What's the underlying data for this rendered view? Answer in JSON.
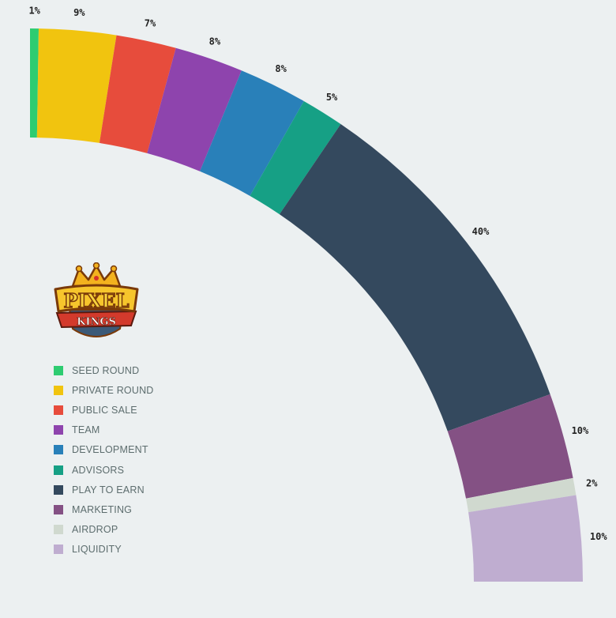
{
  "chart_data": {
    "type": "pie",
    "subtype": "quarter-donut",
    "slices": [
      {
        "label": "SEED ROUND",
        "value": 1,
        "display": "1%",
        "color": "#2ecc71"
      },
      {
        "label": "PRIVATE ROUND",
        "value": 9,
        "display": "9%",
        "color": "#f1c40f"
      },
      {
        "label": "PUBLIC SALE",
        "value": 7,
        "display": "7%",
        "color": "#e74c3c"
      },
      {
        "label": "TEAM",
        "value": 8,
        "display": "8%",
        "color": "#8e44ad"
      },
      {
        "label": "DEVELOPMENT",
        "value": 8,
        "display": "8%",
        "color": "#2980b9"
      },
      {
        "label": "ADVISORS",
        "value": 5,
        "display": "5%",
        "color": "#16a085"
      },
      {
        "label": "PLAY TO EARN",
        "value": 40,
        "display": "40%",
        "color": "#34495e"
      },
      {
        "label": "MARKETING",
        "value": 10,
        "display": "10%",
        "color": "#845184"
      },
      {
        "label": "AIRDROP",
        "value": 2,
        "display": "2%",
        "color": "#d0d9cf"
      },
      {
        "label": "LIQUIDITY",
        "value": 10,
        "display": "10%",
        "color": "#bfadd0"
      }
    ],
    "legend_position": "bottom-left"
  },
  "logo": {
    "line1": "PIXEL",
    "line2": "KINGS"
  }
}
